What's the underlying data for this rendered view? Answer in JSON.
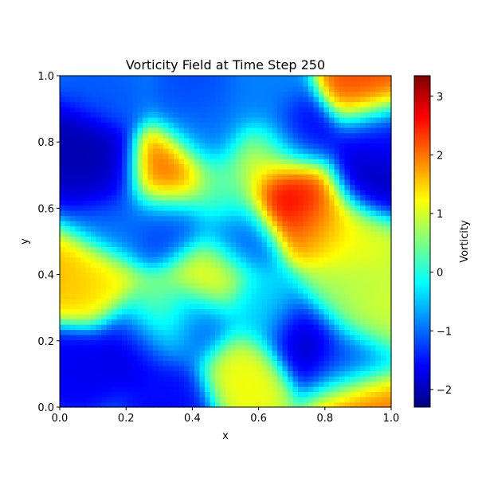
{
  "chart_data": {
    "type": "heatmap",
    "title": "Vorticity Field at Time Step 250",
    "xlabel": "x",
    "ylabel": "y",
    "xlim": [
      0.0,
      1.0
    ],
    "ylim": [
      0.0,
      1.0
    ],
    "x_ticks": [
      "0.0",
      "0.2",
      "0.4",
      "0.6",
      "0.8",
      "1.0"
    ],
    "y_ticks": [
      "0.0",
      "0.2",
      "0.4",
      "0.6",
      "0.8",
      "1.0"
    ],
    "colormap": "jet",
    "grid": false,
    "colorbar": {
      "label": "Vorticity",
      "range": [
        -2.3,
        3.35
      ],
      "tick_values": [
        -2,
        -1,
        0,
        1,
        2,
        3
      ],
      "tick_labels": [
        "−2",
        "−1",
        "0",
        "1",
        "2",
        "3"
      ]
    },
    "features": [
      {
        "x": 0.69,
        "y": 0.64,
        "value": 3.3
      },
      {
        "x": 0.73,
        "y": 0.62,
        "value": 2.2
      },
      {
        "x": 0.79,
        "y": 0.55,
        "value": 1.8
      },
      {
        "x": 0.88,
        "y": 0.5,
        "value": 1.1
      },
      {
        "x": 0.93,
        "y": 0.97,
        "value": 2.3
      },
      {
        "x": 0.92,
        "y": 0.01,
        "value": 2.1
      },
      {
        "x": 0.33,
        "y": 0.7,
        "value": 2.2
      },
      {
        "x": 0.05,
        "y": 0.39,
        "value": 1.7
      },
      {
        "x": 0.1,
        "y": 0.37,
        "value": 1.3
      },
      {
        "x": 0.45,
        "y": 0.4,
        "value": 1.3
      },
      {
        "x": 0.55,
        "y": 0.1,
        "value": 1.2
      },
      {
        "x": 0.95,
        "y": 0.28,
        "value": 1.0
      },
      {
        "x": 0.3,
        "y": 0.27,
        "value": 0.8
      },
      {
        "x": 0.05,
        "y": 0.8,
        "value": -2.1
      },
      {
        "x": 0.12,
        "y": 0.7,
        "value": -2.0
      },
      {
        "x": 0.74,
        "y": 0.22,
        "value": -2.0
      },
      {
        "x": 0.93,
        "y": 0.69,
        "value": -2.0
      },
      {
        "x": 0.97,
        "y": 0.82,
        "value": -1.6
      },
      {
        "x": 0.72,
        "y": 0.81,
        "value": -1.7
      },
      {
        "x": 0.23,
        "y": 0.2,
        "value": -1.9
      },
      {
        "x": 0.4,
        "y": 0.25,
        "value": -1.2
      },
      {
        "x": 0.05,
        "y": 0.13,
        "value": -1.7
      },
      {
        "x": 0.33,
        "y": 0.55,
        "value": -1.3
      },
      {
        "x": 0.55,
        "y": 0.52,
        "value": -1.2
      },
      {
        "x": 0.88,
        "y": 0.14,
        "value": -1.3
      },
      {
        "x": 0.34,
        "y": 0.02,
        "value": -1.6
      },
      {
        "x": 0.12,
        "y": 0.95,
        "value": -1.1
      },
      {
        "x": 0.42,
        "y": 0.97,
        "value": -1.2
      },
      {
        "x": 0.6,
        "y": 0.95,
        "value": -0.9
      },
      {
        "x": 0.16,
        "y": 0.55,
        "value": -1.0
      },
      {
        "x": 0.45,
        "y": 0.83,
        "value": -1.0
      },
      {
        "x": 0.62,
        "y": 0.75,
        "value": 1.0
      },
      {
        "x": 0.5,
        "y": 0.65,
        "value": 0.3
      },
      {
        "x": 0.62,
        "y": 0.3,
        "value": -0.4
      },
      {
        "x": 0.85,
        "y": 0.35,
        "value": 0.8
      }
    ]
  }
}
